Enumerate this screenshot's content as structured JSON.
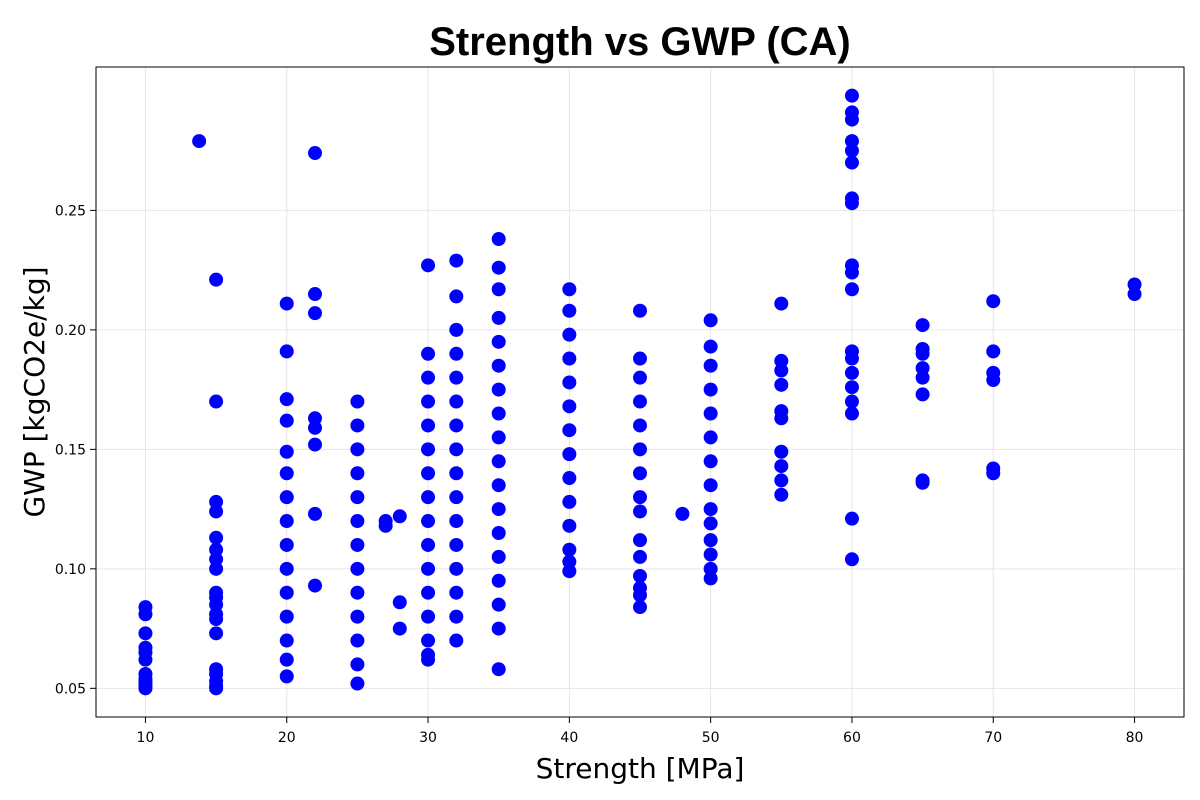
{
  "chart_data": {
    "type": "scatter",
    "title": "Strength vs GWP (CA)",
    "xlabel": "Strength [MPa]",
    "ylabel": "GWP [kgCO2e/kg]",
    "xlim": [
      6.5,
      83.5
    ],
    "ylim": [
      0.038,
      0.31
    ],
    "xticks": [
      10,
      20,
      30,
      40,
      50,
      60,
      70,
      80
    ],
    "yticks": [
      0.05,
      0.1,
      0.15,
      0.2,
      0.25
    ],
    "xtick_labels": [
      "10",
      "20",
      "30",
      "40",
      "50",
      "60",
      "70",
      "80"
    ],
    "ytick_labels": [
      "0.05",
      "0.10",
      "0.15",
      "0.20",
      "0.25"
    ],
    "grid": true,
    "legend": "none",
    "marker_color": "#0000ff",
    "series": [
      {
        "points": [
          [
            10,
            0.05
          ],
          [
            10,
            0.051
          ],
          [
            10,
            0.052
          ],
          [
            10,
            0.053
          ],
          [
            10,
            0.054
          ],
          [
            10,
            0.056
          ],
          [
            10,
            0.062
          ],
          [
            10,
            0.065
          ],
          [
            10,
            0.067
          ],
          [
            10,
            0.073
          ],
          [
            10,
            0.081
          ],
          [
            10,
            0.084
          ],
          [
            13.8,
            0.279
          ],
          [
            15,
            0.221
          ],
          [
            15,
            0.17
          ],
          [
            15,
            0.128
          ],
          [
            15,
            0.124
          ],
          [
            15,
            0.113
          ],
          [
            15,
            0.108
          ],
          [
            15,
            0.104
          ],
          [
            15,
            0.1
          ],
          [
            15,
            0.09
          ],
          [
            15,
            0.088
          ],
          [
            15,
            0.085
          ],
          [
            15,
            0.081
          ],
          [
            15,
            0.079
          ],
          [
            15,
            0.073
          ],
          [
            15,
            0.058
          ],
          [
            15,
            0.056
          ],
          [
            15,
            0.053
          ],
          [
            15,
            0.051
          ],
          [
            15,
            0.05
          ],
          [
            20,
            0.211
          ],
          [
            20,
            0.191
          ],
          [
            20,
            0.171
          ],
          [
            20,
            0.162
          ],
          [
            20,
            0.149
          ],
          [
            20,
            0.14
          ],
          [
            20,
            0.13
          ],
          [
            20,
            0.12
          ],
          [
            20,
            0.11
          ],
          [
            20,
            0.1
          ],
          [
            20,
            0.09
          ],
          [
            20,
            0.08
          ],
          [
            20,
            0.07
          ],
          [
            20,
            0.062
          ],
          [
            20,
            0.055
          ],
          [
            22,
            0.274
          ],
          [
            22,
            0.215
          ],
          [
            22,
            0.207
          ],
          [
            22,
            0.163
          ],
          [
            22,
            0.159
          ],
          [
            22,
            0.152
          ],
          [
            22,
            0.123
          ],
          [
            22,
            0.093
          ],
          [
            25,
            0.17
          ],
          [
            25,
            0.16
          ],
          [
            25,
            0.15
          ],
          [
            25,
            0.14
          ],
          [
            25,
            0.13
          ],
          [
            25,
            0.12
          ],
          [
            25,
            0.11
          ],
          [
            25,
            0.1
          ],
          [
            25,
            0.09
          ],
          [
            25,
            0.08
          ],
          [
            25,
            0.07
          ],
          [
            25,
            0.06
          ],
          [
            25,
            0.052
          ],
          [
            27,
            0.12
          ],
          [
            27,
            0.118
          ],
          [
            28,
            0.122
          ],
          [
            28,
            0.086
          ],
          [
            28,
            0.075
          ],
          [
            30,
            0.227
          ],
          [
            30,
            0.19
          ],
          [
            30,
            0.18
          ],
          [
            30,
            0.17
          ],
          [
            30,
            0.16
          ],
          [
            30,
            0.15
          ],
          [
            30,
            0.14
          ],
          [
            30,
            0.13
          ],
          [
            30,
            0.12
          ],
          [
            30,
            0.11
          ],
          [
            30,
            0.1
          ],
          [
            30,
            0.09
          ],
          [
            30,
            0.08
          ],
          [
            30,
            0.07
          ],
          [
            30,
            0.064
          ],
          [
            30,
            0.062
          ],
          [
            32,
            0.229
          ],
          [
            32,
            0.214
          ],
          [
            32,
            0.2
          ],
          [
            32,
            0.19
          ],
          [
            32,
            0.18
          ],
          [
            32,
            0.17
          ],
          [
            32,
            0.16
          ],
          [
            32,
            0.15
          ],
          [
            32,
            0.14
          ],
          [
            32,
            0.13
          ],
          [
            32,
            0.12
          ],
          [
            32,
            0.11
          ],
          [
            32,
            0.1
          ],
          [
            32,
            0.09
          ],
          [
            32,
            0.08
          ],
          [
            32,
            0.07
          ],
          [
            35,
            0.238
          ],
          [
            35,
            0.226
          ],
          [
            35,
            0.217
          ],
          [
            35,
            0.205
          ],
          [
            35,
            0.195
          ],
          [
            35,
            0.185
          ],
          [
            35,
            0.175
          ],
          [
            35,
            0.165
          ],
          [
            35,
            0.155
          ],
          [
            35,
            0.145
          ],
          [
            35,
            0.135
          ],
          [
            35,
            0.125
          ],
          [
            35,
            0.115
          ],
          [
            35,
            0.105
          ],
          [
            35,
            0.095
          ],
          [
            35,
            0.085
          ],
          [
            35,
            0.075
          ],
          [
            35,
            0.058
          ],
          [
            40,
            0.217
          ],
          [
            40,
            0.208
          ],
          [
            40,
            0.198
          ],
          [
            40,
            0.188
          ],
          [
            40,
            0.178
          ],
          [
            40,
            0.168
          ],
          [
            40,
            0.158
          ],
          [
            40,
            0.148
          ],
          [
            40,
            0.138
          ],
          [
            40,
            0.128
          ],
          [
            40,
            0.118
          ],
          [
            40,
            0.108
          ],
          [
            40,
            0.103
          ],
          [
            40,
            0.099
          ],
          [
            45,
            0.208
          ],
          [
            45,
            0.188
          ],
          [
            45,
            0.18
          ],
          [
            45,
            0.17
          ],
          [
            45,
            0.16
          ],
          [
            45,
            0.15
          ],
          [
            45,
            0.14
          ],
          [
            45,
            0.13
          ],
          [
            45,
            0.124
          ],
          [
            45,
            0.112
          ],
          [
            45,
            0.105
          ],
          [
            45,
            0.097
          ],
          [
            45,
            0.092
          ],
          [
            45,
            0.089
          ],
          [
            45,
            0.084
          ],
          [
            48,
            0.123
          ],
          [
            50,
            0.204
          ],
          [
            50,
            0.193
          ],
          [
            50,
            0.185
          ],
          [
            50,
            0.175
          ],
          [
            50,
            0.165
          ],
          [
            50,
            0.155
          ],
          [
            50,
            0.145
          ],
          [
            50,
            0.135
          ],
          [
            50,
            0.125
          ],
          [
            50,
            0.119
          ],
          [
            50,
            0.112
          ],
          [
            50,
            0.106
          ],
          [
            50,
            0.1
          ],
          [
            50,
            0.096
          ],
          [
            55,
            0.211
          ],
          [
            55,
            0.187
          ],
          [
            55,
            0.183
          ],
          [
            55,
            0.177
          ],
          [
            55,
            0.166
          ],
          [
            55,
            0.163
          ],
          [
            55,
            0.149
          ],
          [
            55,
            0.143
          ],
          [
            55,
            0.137
          ],
          [
            55,
            0.131
          ],
          [
            60,
            0.298
          ],
          [
            60,
            0.291
          ],
          [
            60,
            0.288
          ],
          [
            60,
            0.279
          ],
          [
            60,
            0.275
          ],
          [
            60,
            0.27
          ],
          [
            60,
            0.255
          ],
          [
            60,
            0.253
          ],
          [
            60,
            0.227
          ],
          [
            60,
            0.224
          ],
          [
            60,
            0.217
          ],
          [
            60,
            0.191
          ],
          [
            60,
            0.188
          ],
          [
            60,
            0.182
          ],
          [
            60,
            0.176
          ],
          [
            60,
            0.17
          ],
          [
            60,
            0.165
          ],
          [
            60,
            0.121
          ],
          [
            60,
            0.104
          ],
          [
            65,
            0.202
          ],
          [
            65,
            0.192
          ],
          [
            65,
            0.19
          ],
          [
            65,
            0.184
          ],
          [
            65,
            0.18
          ],
          [
            65,
            0.173
          ],
          [
            65,
            0.137
          ],
          [
            65,
            0.136
          ],
          [
            70,
            0.212
          ],
          [
            70,
            0.191
          ],
          [
            70,
            0.182
          ],
          [
            70,
            0.179
          ],
          [
            70,
            0.142
          ],
          [
            70,
            0.14
          ],
          [
            80,
            0.219
          ],
          [
            80,
            0.215
          ]
        ]
      }
    ]
  }
}
